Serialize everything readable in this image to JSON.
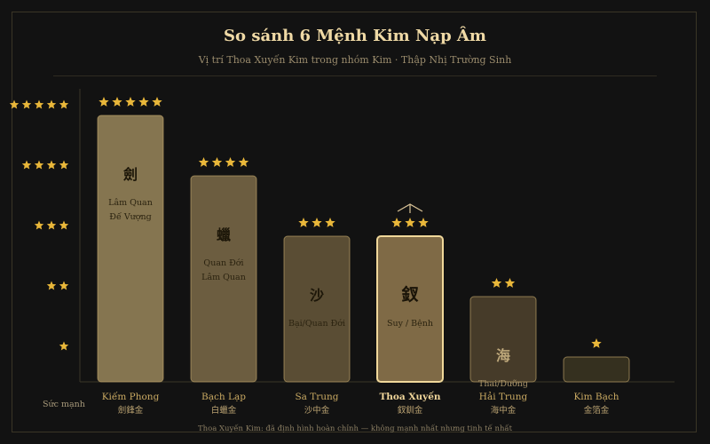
{
  "chart_data": {
    "type": "bar",
    "title": "So sánh 6 Mệnh Kim Nạp Âm",
    "subtitle": "Vị trí Thoa Xuyến Kim trong nhóm Kim · Thập Nhị Trường Sinh",
    "ylabel": "Sức mạnh",
    "ylim": [
      0,
      5
    ],
    "yticks": [
      1,
      2,
      3,
      4,
      5
    ],
    "highlight_index": 3,
    "categories": [
      {
        "name": "Kiếm Phong",
        "han": "劍鋒金",
        "char": "劍",
        "stage": "Lâm Quan\nĐế Vượng",
        "value": 5
      },
      {
        "name": "Bạch Lạp",
        "han": "白蠟金",
        "char": "蠟",
        "stage": "Quan Đới\nLâm Quan",
        "value": 4
      },
      {
        "name": "Sa Trung",
        "han": "沙中金",
        "char": "沙",
        "stage": "Bại/Quan Đới",
        "value": 3
      },
      {
        "name": "Thoa Xuyến",
        "han": "釵釧金",
        "char": "釵",
        "stage": "Suy / Bệnh",
        "value": 3
      },
      {
        "name": "Hải Trung",
        "han": "海中金",
        "char": "海",
        "stage": "Thai/Dưỡng",
        "value": 2
      },
      {
        "name": "Kim Bạch",
        "han": "金箔金",
        "char": "",
        "stage": "",
        "value": 1
      }
    ],
    "colors": {
      "bars": [
        "#857550",
        "#6c5d40",
        "#5a4d34",
        "#7f6a46",
        "#463b29",
        "#35301f"
      ],
      "highlight_border": "#f0d89a",
      "star": "#e9b73a"
    },
    "footnote": "Thoa Xuyến Kim: đã định hình hoàn chỉnh — không mạnh nhất nhưng tinh tế nhất"
  }
}
